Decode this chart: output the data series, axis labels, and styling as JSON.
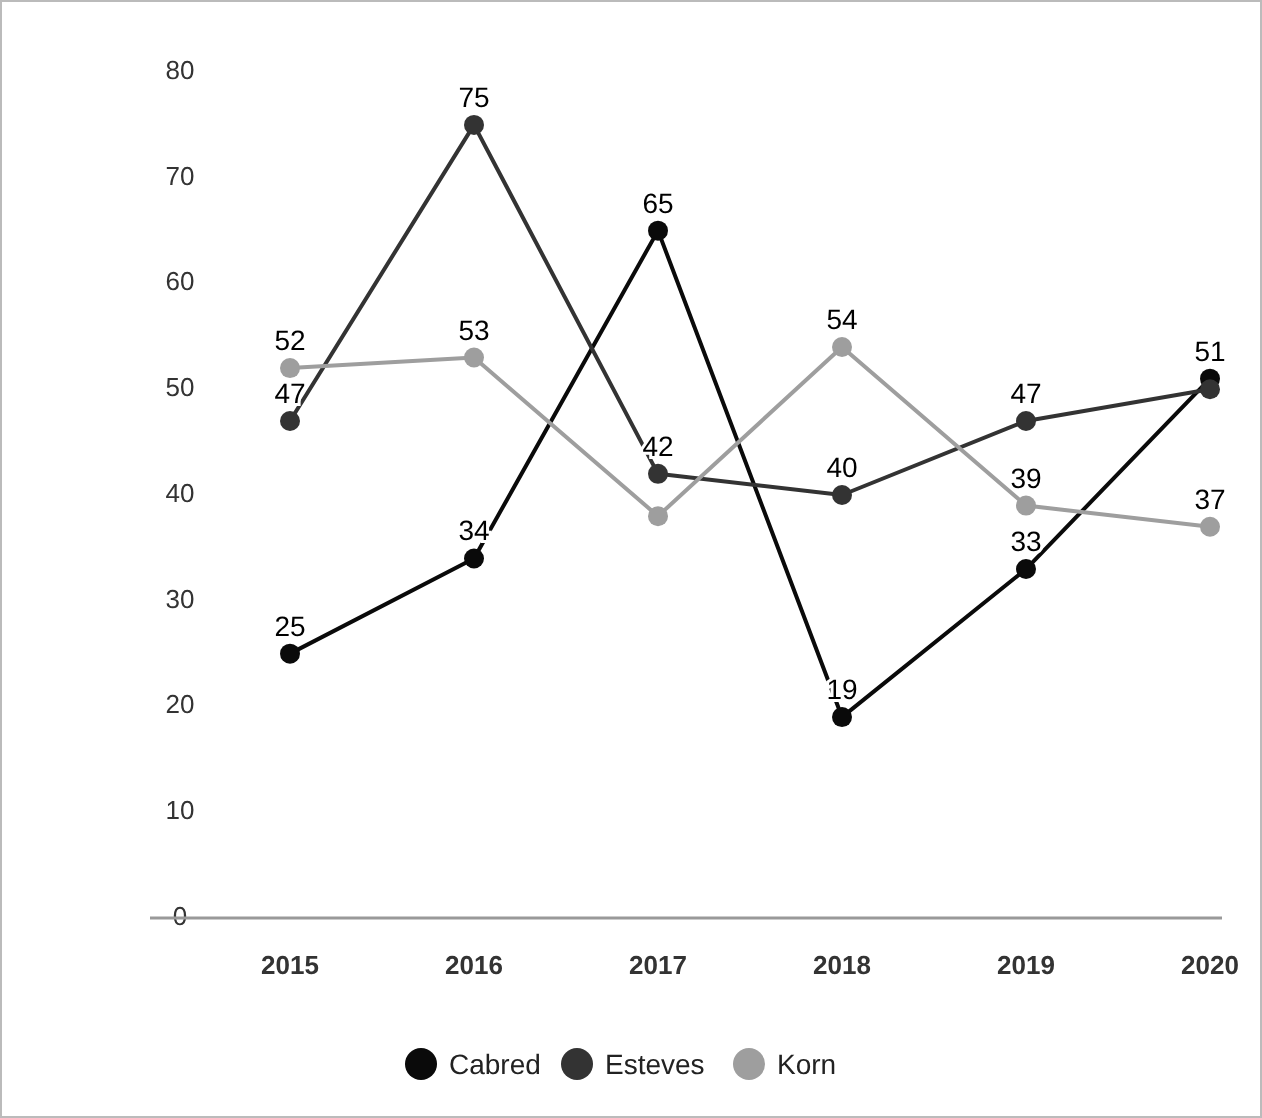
{
  "chart_data": {
    "type": "line",
    "categories": [
      "2015",
      "2016",
      "2017",
      "2018",
      "2019",
      "2020"
    ],
    "series": [
      {
        "name": "Cabred",
        "color": "#0a0a0a",
        "values": [
          25,
          34,
          65,
          19,
          33,
          51
        ],
        "value_labels": [
          "25",
          "34",
          "65",
          "19",
          "33",
          "51"
        ]
      },
      {
        "name": "Esteves",
        "color": "#333333",
        "values": [
          47,
          75,
          42,
          40,
          47,
          50
        ],
        "value_labels": [
          "47",
          "75",
          "42",
          "40",
          "47",
          null
        ]
      },
      {
        "name": "Korn",
        "color": "#9e9e9e",
        "values": [
          52,
          53,
          38,
          54,
          39,
          37
        ],
        "value_labels": [
          "52",
          "53",
          null,
          "54",
          "39",
          "37"
        ]
      }
    ],
    "ylim": [
      0,
      80
    ],
    "yticks": [
      0,
      10,
      20,
      30,
      40,
      50,
      60,
      70,
      80
    ],
    "grid": false,
    "legend": "bottom",
    "marker": "circle",
    "line_style": "solid"
  }
}
